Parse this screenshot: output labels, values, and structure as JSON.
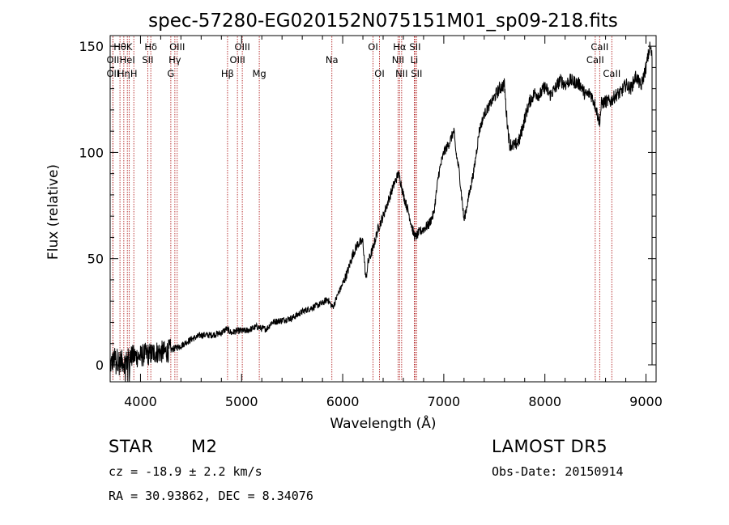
{
  "chart_data": {
    "type": "line",
    "title": "spec-57280-EG020152N075151M01_sp09-218.fits",
    "xlabel": "Wavelength (Å)",
    "ylabel": "Flux (relative)",
    "xlim": [
      3700,
      9100
    ],
    "ylim": [
      -8,
      155
    ],
    "xticks": [
      4000,
      5000,
      6000,
      7000,
      8000,
      9000
    ],
    "yticks": [
      0,
      50,
      100,
      150
    ],
    "line_color": "#000000",
    "marker_color": "#b22222",
    "series": [
      {
        "x": [
          3700,
          3750,
          3800,
          3850,
          3900,
          3950,
          4000,
          4050,
          4100,
          4150,
          4200,
          4250,
          4300,
          4350,
          4400,
          4500,
          4600,
          4700,
          4800,
          4850,
          4900,
          4950,
          5000,
          5050,
          5100,
          5150,
          5200,
          5250,
          5300,
          5400,
          5500,
          5600,
          5700,
          5800,
          5850,
          5900,
          5920,
          5950,
          6000,
          6050,
          6100,
          6150,
          6200,
          6230,
          6250,
          6300,
          6350,
          6400,
          6450,
          6500,
          6550,
          6570,
          6600,
          6650,
          6680,
          6700,
          6720,
          6750,
          6800,
          6850,
          6900,
          6950,
          7000,
          7050,
          7100,
          7120,
          7150,
          7180,
          7200,
          7250,
          7300,
          7350,
          7400,
          7450,
          7500,
          7550,
          7600,
          7620,
          7650,
          7700,
          7750,
          7800,
          7850,
          7900,
          7950,
          8000,
          8050,
          8100,
          8150,
          8200,
          8250,
          8300,
          8350,
          8400,
          8450,
          8500,
          8540,
          8560,
          8600,
          8650,
          8700,
          8750,
          8800,
          8850,
          8900,
          8950,
          9000,
          9020,
          9040,
          9060
        ],
        "y": [
          0,
          3,
          2,
          1,
          4,
          4,
          4,
          5,
          5,
          6,
          6,
          6,
          7,
          8,
          9,
          12,
          14,
          14,
          15,
          17,
          15,
          16,
          16,
          16,
          17,
          18,
          17,
          17,
          20,
          21,
          22,
          25,
          27,
          29,
          31,
          27,
          29,
          33,
          38,
          44,
          52,
          57,
          58,
          40,
          48,
          55,
          64,
          70,
          77,
          84,
          90,
          87,
          80,
          72,
          66,
          62,
          60,
          62,
          64,
          66,
          71,
          90,
          100,
          104,
          110,
          100,
          92,
          78,
          68,
          80,
          92,
          110,
          118,
          122,
          126,
          130,
          132,
          118,
          104,
          103,
          106,
          116,
          124,
          128,
          127,
          131,
          127,
          130,
          134,
          132,
          134,
          133,
          132,
          127,
          128,
          122,
          114,
          123,
          124,
          124,
          127,
          128,
          132,
          130,
          136,
          131,
          140,
          145,
          150,
          145
        ]
      }
    ],
    "lines": [
      {
        "wl": 3797,
        "label": "Hθ",
        "row": 1
      },
      {
        "wl": 3727,
        "label": "OII",
        "row": 2
      },
      {
        "wl": 3727,
        "label": "OII",
        "row": 3
      },
      {
        "wl": 3870,
        "label": "HeI",
        "row": 2
      },
      {
        "wl": 3889,
        "label": "K",
        "row": 1
      },
      {
        "wl": 3835,
        "label": "Hη",
        "row": 3
      },
      {
        "wl": 3934,
        "label": "H",
        "row": 3
      },
      {
        "wl": 4102,
        "label": "Hδ",
        "row": 1
      },
      {
        "wl": 4072,
        "label": "SII",
        "row": 2
      },
      {
        "wl": 4300,
        "label": "G",
        "row": 3
      },
      {
        "wl": 4340,
        "label": "Hγ",
        "row": 2
      },
      {
        "wl": 4363,
        "label": "OIII",
        "row": 1
      },
      {
        "wl": 4861,
        "label": "Hβ",
        "row": 3
      },
      {
        "wl": 5007,
        "label": "OIII",
        "row": 1
      },
      {
        "wl": 4959,
        "label": "OIII",
        "row": 2
      },
      {
        "wl": 5175,
        "label": "Mg",
        "row": 3
      },
      {
        "wl": 5893,
        "label": "Na",
        "row": 2
      },
      {
        "wl": 6300,
        "label": "OI",
        "row": 1
      },
      {
        "wl": 6364,
        "label": "OI",
        "row": 3
      },
      {
        "wl": 6548,
        "label": "NII",
        "row": 2
      },
      {
        "wl": 6563,
        "label": "Hα",
        "row": 1
      },
      {
        "wl": 6583,
        "label": "NII",
        "row": 3
      },
      {
        "wl": 6708,
        "label": "Li",
        "row": 2
      },
      {
        "wl": 6716,
        "label": "SII",
        "row": 1
      },
      {
        "wl": 6731,
        "label": "SII",
        "row": 3
      },
      {
        "wl": 8498,
        "label": "CaII",
        "row": 2
      },
      {
        "wl": 8542,
        "label": "CaII",
        "row": 1
      },
      {
        "wl": 8662,
        "label": "CaII",
        "row": 3
      }
    ]
  },
  "info": {
    "class": "STAR",
    "subclass": "M2",
    "survey": "LAMOST  DR5",
    "cz": "cz = -18.9 ± 2.2 km/s",
    "obsdate": "Obs-Date: 20150914",
    "radec": "RA =  30.93862, DEC =   8.34076"
  }
}
